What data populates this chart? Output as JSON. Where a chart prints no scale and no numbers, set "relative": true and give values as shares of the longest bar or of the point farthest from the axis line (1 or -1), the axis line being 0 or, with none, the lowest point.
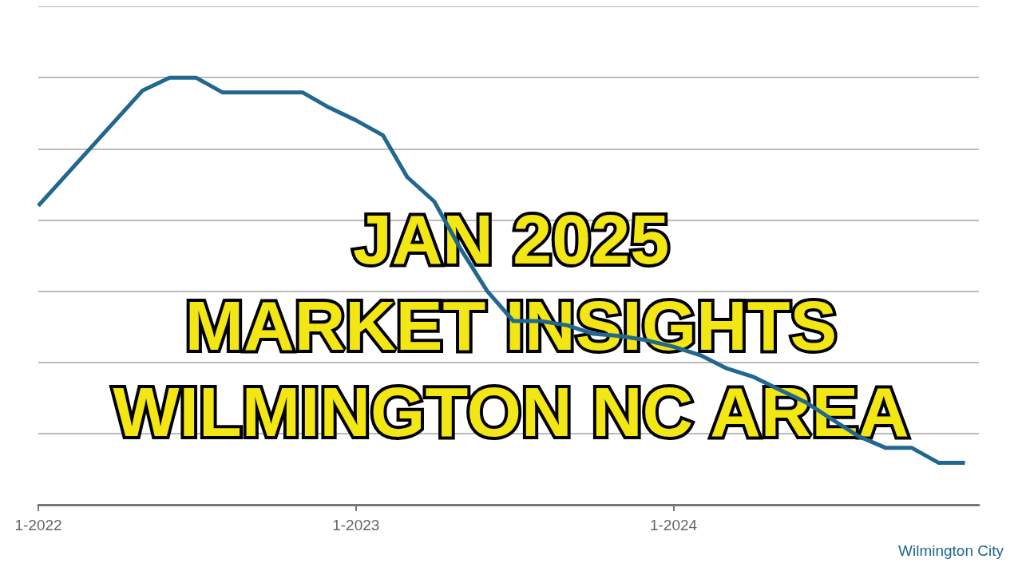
{
  "chart_data": {
    "type": "line",
    "title": "JAN 2025\nMARKET INSIGHTS\nWILMINGTON NC AREA",
    "relative": true,
    "x": [
      "2022-01",
      "2022-05",
      "2022-06",
      "2022-07",
      "2022-08",
      "2022-09",
      "2022-10",
      "2022-11",
      "2022-12",
      "2023-01",
      "2023-02",
      "2023-03",
      "2023-04",
      "2023-05",
      "2023-06",
      "2023-07",
      "2023-08",
      "2023-09",
      "2023-10",
      "2023-11",
      "2023-12",
      "2024-01",
      "2024-02",
      "2024-03",
      "2024-04",
      "2024-05",
      "2024-06",
      "2024-07",
      "2024-08",
      "2024-09",
      "2024-10",
      "2024-11",
      "2024-12"
    ],
    "series": [
      {
        "name": "Wilmington City",
        "color": "#21678f",
        "values": [
          0.7,
          0.97,
          1.0,
          1.0,
          0.965,
          0.965,
          0.965,
          0.965,
          0.93,
          0.9,
          0.865,
          0.767,
          0.71,
          0.6,
          0.5,
          0.43,
          0.43,
          0.42,
          0.4,
          0.395,
          0.385,
          0.37,
          0.35,
          0.32,
          0.3,
          0.27,
          0.24,
          0.2,
          0.16,
          0.133,
          0.133,
          0.098,
          0.098
        ]
      }
    ],
    "xlim": [
      "2022-01",
      "2024-12-17"
    ],
    "xticks": [
      {
        "value": "2022-01",
        "label": "1-2022"
      },
      {
        "value": "2023-01",
        "label": "1-2023"
      },
      {
        "value": "2024-01",
        "label": "1-2024"
      }
    ],
    "grid": "y",
    "legend": "bottom right",
    "marker": "none",
    "line_style": "solid"
  }
}
